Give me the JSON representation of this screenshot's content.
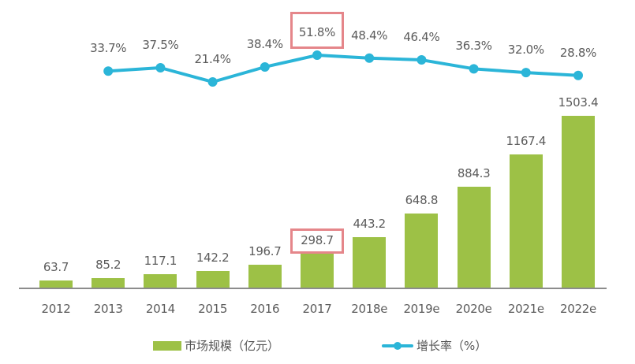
{
  "chart_data": {
    "type": "bar+line",
    "title": "",
    "categories": [
      "2012",
      "2013",
      "2014",
      "2015",
      "2016",
      "2017",
      "2018e",
      "2019e",
      "2020e",
      "2021e",
      "2022e"
    ],
    "series": [
      {
        "name": "市场规模（亿元）",
        "type": "bar",
        "color": "#9dc146",
        "values": [
          63.7,
          85.2,
          117.1,
          142.2,
          196.7,
          298.7,
          443.2,
          648.8,
          884.3,
          1167.4,
          1503.4
        ],
        "labels": [
          "63.7",
          "85.2",
          "117.1",
          "142.2",
          "196.7",
          "298.7",
          "443.2",
          "648.8",
          "884.3",
          "1167.4",
          "1503.4"
        ]
      },
      {
        "name": "增长率（%）",
        "type": "line",
        "color": "#2bb5d8",
        "categories": [
          "2013",
          "2014",
          "2015",
          "2016",
          "2017",
          "2018e",
          "2019e",
          "2020e",
          "2021e",
          "2022e"
        ],
        "values": [
          33.7,
          37.5,
          21.4,
          38.4,
          51.8,
          48.4,
          46.4,
          36.3,
          32.0,
          28.8
        ],
        "labels": [
          "33.7%",
          "37.5%",
          "21.4%",
          "38.4%",
          "51.8%",
          "48.4%",
          "46.4%",
          "36.3%",
          "32.0%",
          "28.8%"
        ]
      }
    ],
    "highlights": [
      {
        "category": "2017",
        "series": "市场规模（亿元）",
        "label": "298.7",
        "color": "#e5868a"
      },
      {
        "category": "2017",
        "series": "增长率（%）",
        "label": "51.8%",
        "color": "#e5868a"
      }
    ],
    "xlabel": "",
    "ylabel": "",
    "grid": false,
    "legend_position": "bottom"
  },
  "legend": {
    "bar_label": "市场规模（亿元）",
    "line_label": "增长率（%）"
  }
}
